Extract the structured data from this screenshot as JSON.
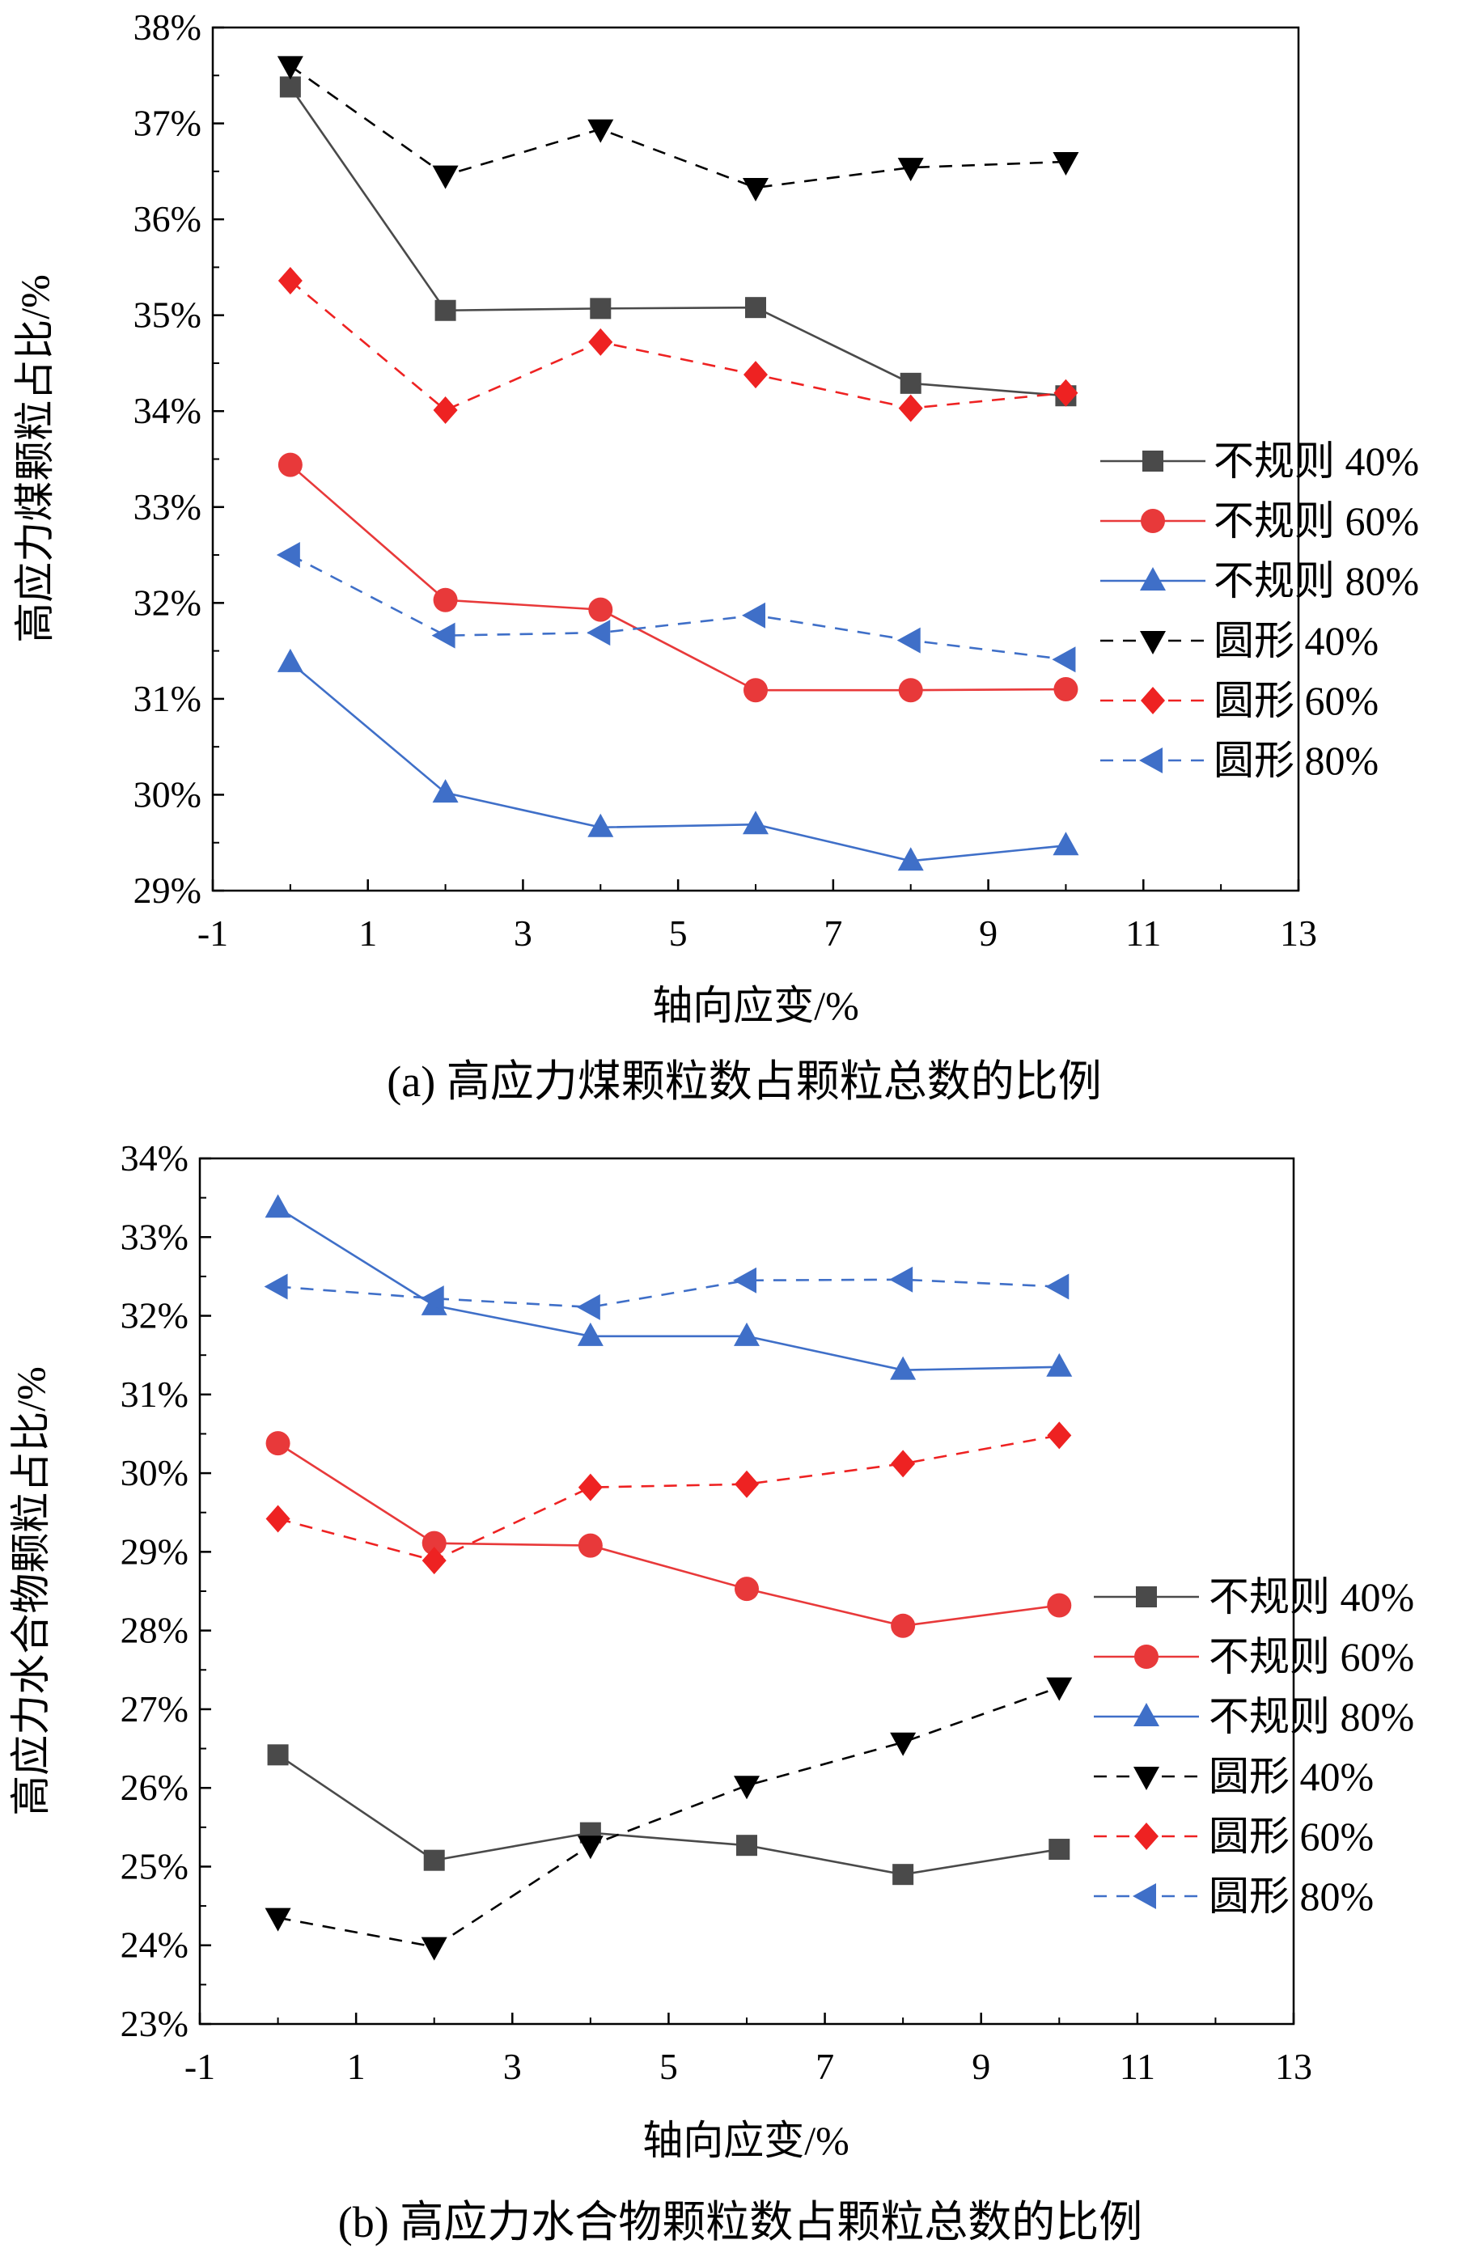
{
  "colors": {
    "irregular_40": "#4a4a4a",
    "irregular_60": "#e8393a",
    "irregular_80": "#3f6fc8",
    "round_40": "#000000",
    "round_60": "#ee2222",
    "round_80": "#3f6fc8"
  },
  "chart_data": [
    {
      "type": "line",
      "caption": "(a) 高应力煤颗粒数占颗粒总数的比例",
      "xlabel": "轴向应变/%",
      "ylabel": "高应力煤颗粒占比/%",
      "xlim": [
        -1,
        13
      ],
      "ylim": [
        29,
        38
      ],
      "xticks": [
        -1,
        1,
        3,
        5,
        7,
        9,
        11,
        13
      ],
      "xtick_labels": [
        "-1",
        "1",
        "3",
        "5",
        "7",
        "9",
        "11",
        "13"
      ],
      "yticks": [
        29,
        30,
        31,
        32,
        33,
        34,
        35,
        36,
        37,
        38
      ],
      "ytick_labels": [
        "29%",
        "30%",
        "31%",
        "32%",
        "33%",
        "34%",
        "35%",
        "36%",
        "37%",
        "38%"
      ],
      "legend_position": "right",
      "x": [
        0,
        2,
        4,
        6,
        8,
        10
      ],
      "series": [
        {
          "name": "不规则 40%",
          "marker": "square",
          "dash": "solid",
          "color_key": "irregular_40",
          "values": [
            37.38,
            35.05,
            35.07,
            35.08,
            34.29,
            34.16
          ]
        },
        {
          "name": "不规则 60%",
          "marker": "circle",
          "dash": "solid",
          "color_key": "irregular_60",
          "values": [
            33.44,
            32.03,
            31.93,
            31.09,
            31.09,
            31.1
          ]
        },
        {
          "name": "不规则 80%",
          "marker": "triangle-up",
          "dash": "solid",
          "color_key": "irregular_80",
          "values": [
            31.38,
            30.02,
            29.66,
            29.69,
            29.31,
            29.47
          ]
        },
        {
          "name": "圆形 40%",
          "marker": "triangle-down",
          "dash": "dashed",
          "color_key": "round_40",
          "values": [
            37.6,
            36.46,
            36.94,
            36.33,
            36.54,
            36.6
          ]
        },
        {
          "name": "圆形 60%",
          "marker": "diamond",
          "dash": "dashed",
          "color_key": "round_60",
          "values": [
            35.36,
            34.01,
            34.72,
            34.38,
            34.03,
            34.19
          ]
        },
        {
          "name": "圆形 80%",
          "marker": "triangle-left",
          "dash": "dashed",
          "color_key": "round_80",
          "values": [
            32.5,
            31.66,
            31.69,
            31.87,
            31.61,
            31.41
          ]
        }
      ]
    },
    {
      "type": "line",
      "caption": "(b) 高应力水合物颗粒数占颗粒总数的比例",
      "xlabel": "轴向应变/%",
      "ylabel": "高应力水合物颗粒占比/%",
      "xlim": [
        -1,
        13
      ],
      "ylim": [
        23,
        34
      ],
      "xticks": [
        -1,
        1,
        3,
        5,
        7,
        9,
        11,
        13
      ],
      "xtick_labels": [
        "-1",
        "1",
        "3",
        "5",
        "7",
        "9",
        "11",
        "13"
      ],
      "yticks": [
        23,
        24,
        25,
        26,
        27,
        28,
        29,
        30,
        31,
        32,
        33,
        34
      ],
      "ytick_labels": [
        "23%",
        "24%",
        "25%",
        "26%",
        "27%",
        "28%",
        "29%",
        "30%",
        "31%",
        "32%",
        "33%",
        "34%"
      ],
      "legend_position": "right",
      "x": [
        0,
        2,
        4,
        6,
        8,
        10
      ],
      "series": [
        {
          "name": "不规则 40%",
          "marker": "square",
          "dash": "solid",
          "color_key": "irregular_40",
          "values": [
            26.42,
            25.08,
            25.43,
            25.27,
            24.9,
            25.22
          ]
        },
        {
          "name": "不规则 60%",
          "marker": "circle",
          "dash": "solid",
          "color_key": "irregular_60",
          "values": [
            30.38,
            29.11,
            29.08,
            28.53,
            28.06,
            28.32
          ]
        },
        {
          "name": "不规则 80%",
          "marker": "triangle-up",
          "dash": "solid",
          "color_key": "irregular_80",
          "values": [
            33.37,
            32.13,
            31.74,
            31.74,
            31.31,
            31.35
          ]
        },
        {
          "name": "圆形 40%",
          "marker": "triangle-down",
          "dash": "dashed",
          "color_key": "round_40",
          "values": [
            24.35,
            23.98,
            25.27,
            26.03,
            26.58,
            27.28
          ]
        },
        {
          "name": "圆形 60%",
          "marker": "diamond",
          "dash": "dashed",
          "color_key": "round_60",
          "values": [
            29.42,
            28.89,
            29.82,
            29.86,
            30.12,
            30.48
          ]
        },
        {
          "name": "圆形 80%",
          "marker": "triangle-left",
          "dash": "dashed",
          "color_key": "round_80",
          "values": [
            32.37,
            32.22,
            32.11,
            32.45,
            32.46,
            32.37
          ]
        }
      ]
    }
  ]
}
